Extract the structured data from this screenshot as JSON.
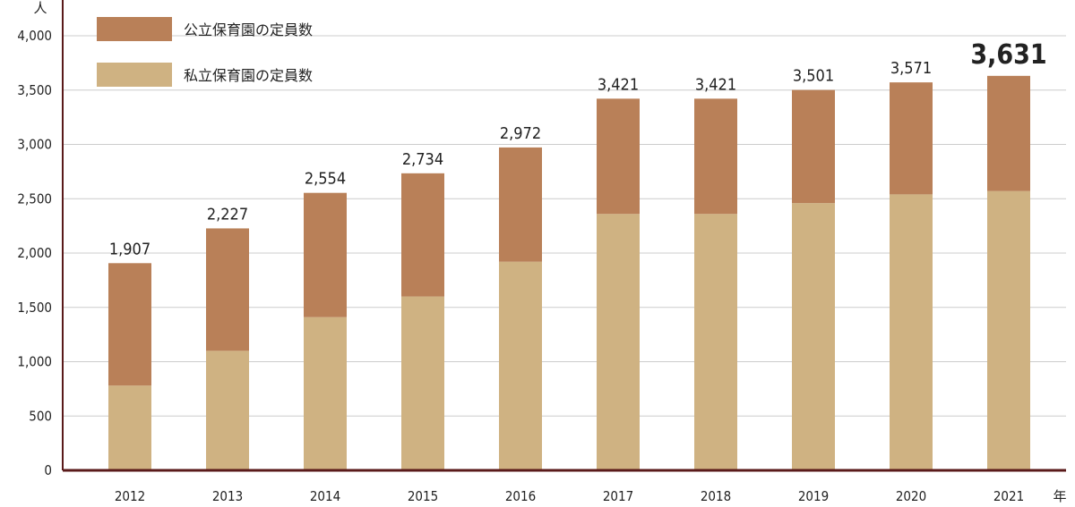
{
  "chart_data": {
    "type": "bar",
    "stacked": true,
    "y_unit_label": "人",
    "x_unit_label": "年",
    "categories": [
      "2012",
      "2013",
      "2014",
      "2015",
      "2016",
      "2017",
      "2018",
      "2019",
      "2020",
      "2021"
    ],
    "series": [
      {
        "name": "私立保育園の定員数",
        "color": "#cfb282",
        "values": [
          780,
          1100,
          1410,
          1600,
          1920,
          2360,
          2360,
          2460,
          2540,
          2570
        ]
      },
      {
        "name": "公立保育園の定員数",
        "color": "#b98058",
        "values": [
          1127,
          1127,
          1144,
          1134,
          1052,
          1061,
          1061,
          1041,
          1031,
          1061
        ]
      }
    ],
    "totals": [
      "1,907",
      "2,227",
      "2,554",
      "2,734",
      "2,972",
      "3,421",
      "3,421",
      "3,501",
      "3,571",
      "3,631"
    ],
    "highlight_index": 9,
    "ylim": [
      0,
      4000
    ],
    "yticks": [
      0,
      500,
      1000,
      1500,
      2000,
      2500,
      3000,
      3500,
      4000
    ],
    "ytick_labels": [
      "0",
      "500",
      "1,000",
      "1,500",
      "2,000",
      "2,500",
      "3,000",
      "3,500",
      "4,000"
    ],
    "legend": {
      "placement": "top-left",
      "order": [
        "公立保育園の定員数",
        "私立保育園の定員数"
      ]
    },
    "grid": "horizontal",
    "colors": {
      "axis": "#5a1a1a",
      "grid": "#cccccc",
      "total_text": "#222222",
      "highlight_text": "#a02828"
    }
  }
}
